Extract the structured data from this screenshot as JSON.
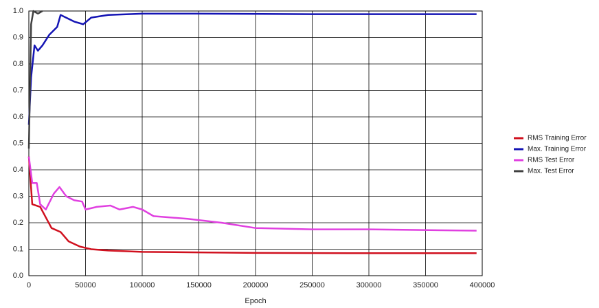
{
  "chart_data": {
    "type": "line",
    "x_label": "Epoch",
    "xlim": [
      0,
      400000
    ],
    "xticks": [
      0,
      50000,
      100000,
      150000,
      200000,
      250000,
      300000,
      350000,
      400000
    ],
    "ylim": [
      0,
      1
    ],
    "yticks": [
      {
        "value": 0,
        "label": "0.0"
      },
      0.1,
      0.2,
      0.3,
      0.4,
      0.5,
      0.6,
      0.7,
      0.8,
      0.9,
      {
        "value": 1,
        "label": "1.0"
      }
    ],
    "grid": true,
    "legend": "right",
    "series": [
      {
        "name": "RMS Training Error",
        "color": "#d0101e",
        "x": [
          0,
          3000,
          10000,
          15000,
          20000,
          28000,
          35000,
          45000,
          55000,
          70000,
          100000,
          150000,
          200000,
          300000,
          395000
        ],
        "values": [
          0.45,
          0.27,
          0.26,
          0.22,
          0.18,
          0.165,
          0.13,
          0.11,
          0.1,
          0.095,
          0.09,
          0.088,
          0.086,
          0.085,
          0.085
        ]
      },
      {
        "name": "Max. Training Error",
        "color": "#1414b4",
        "x": [
          0,
          2000,
          5000,
          8000,
          12000,
          18000,
          25000,
          28000,
          40000,
          48000,
          55000,
          70000,
          100000,
          150000,
          250000,
          395000
        ],
        "values": [
          0.57,
          0.75,
          0.87,
          0.85,
          0.87,
          0.91,
          0.94,
          0.985,
          0.96,
          0.95,
          0.975,
          0.985,
          0.99,
          0.99,
          0.988,
          0.988
        ]
      },
      {
        "name": "RMS Test Error",
        "color": "#e040e0",
        "x": [
          0,
          3000,
          7000,
          10000,
          15000,
          22000,
          27000,
          33000,
          40000,
          47000,
          50000,
          60000,
          72000,
          80000,
          92000,
          100000,
          110000,
          140000,
          170000,
          200000,
          250000,
          300000,
          395000
        ],
        "values": [
          0.45,
          0.35,
          0.35,
          0.27,
          0.25,
          0.31,
          0.335,
          0.3,
          0.285,
          0.28,
          0.25,
          0.26,
          0.265,
          0.25,
          0.26,
          0.25,
          0.225,
          0.215,
          0.2,
          0.18,
          0.175,
          0.175,
          0.17
        ]
      },
      {
        "name": "Max. Test Error",
        "color": "#404040",
        "x": [
          0,
          2000,
          4000,
          8000,
          12000
        ],
        "values": [
          0.48,
          0.95,
          1.0,
          0.99,
          1.0
        ]
      }
    ]
  }
}
